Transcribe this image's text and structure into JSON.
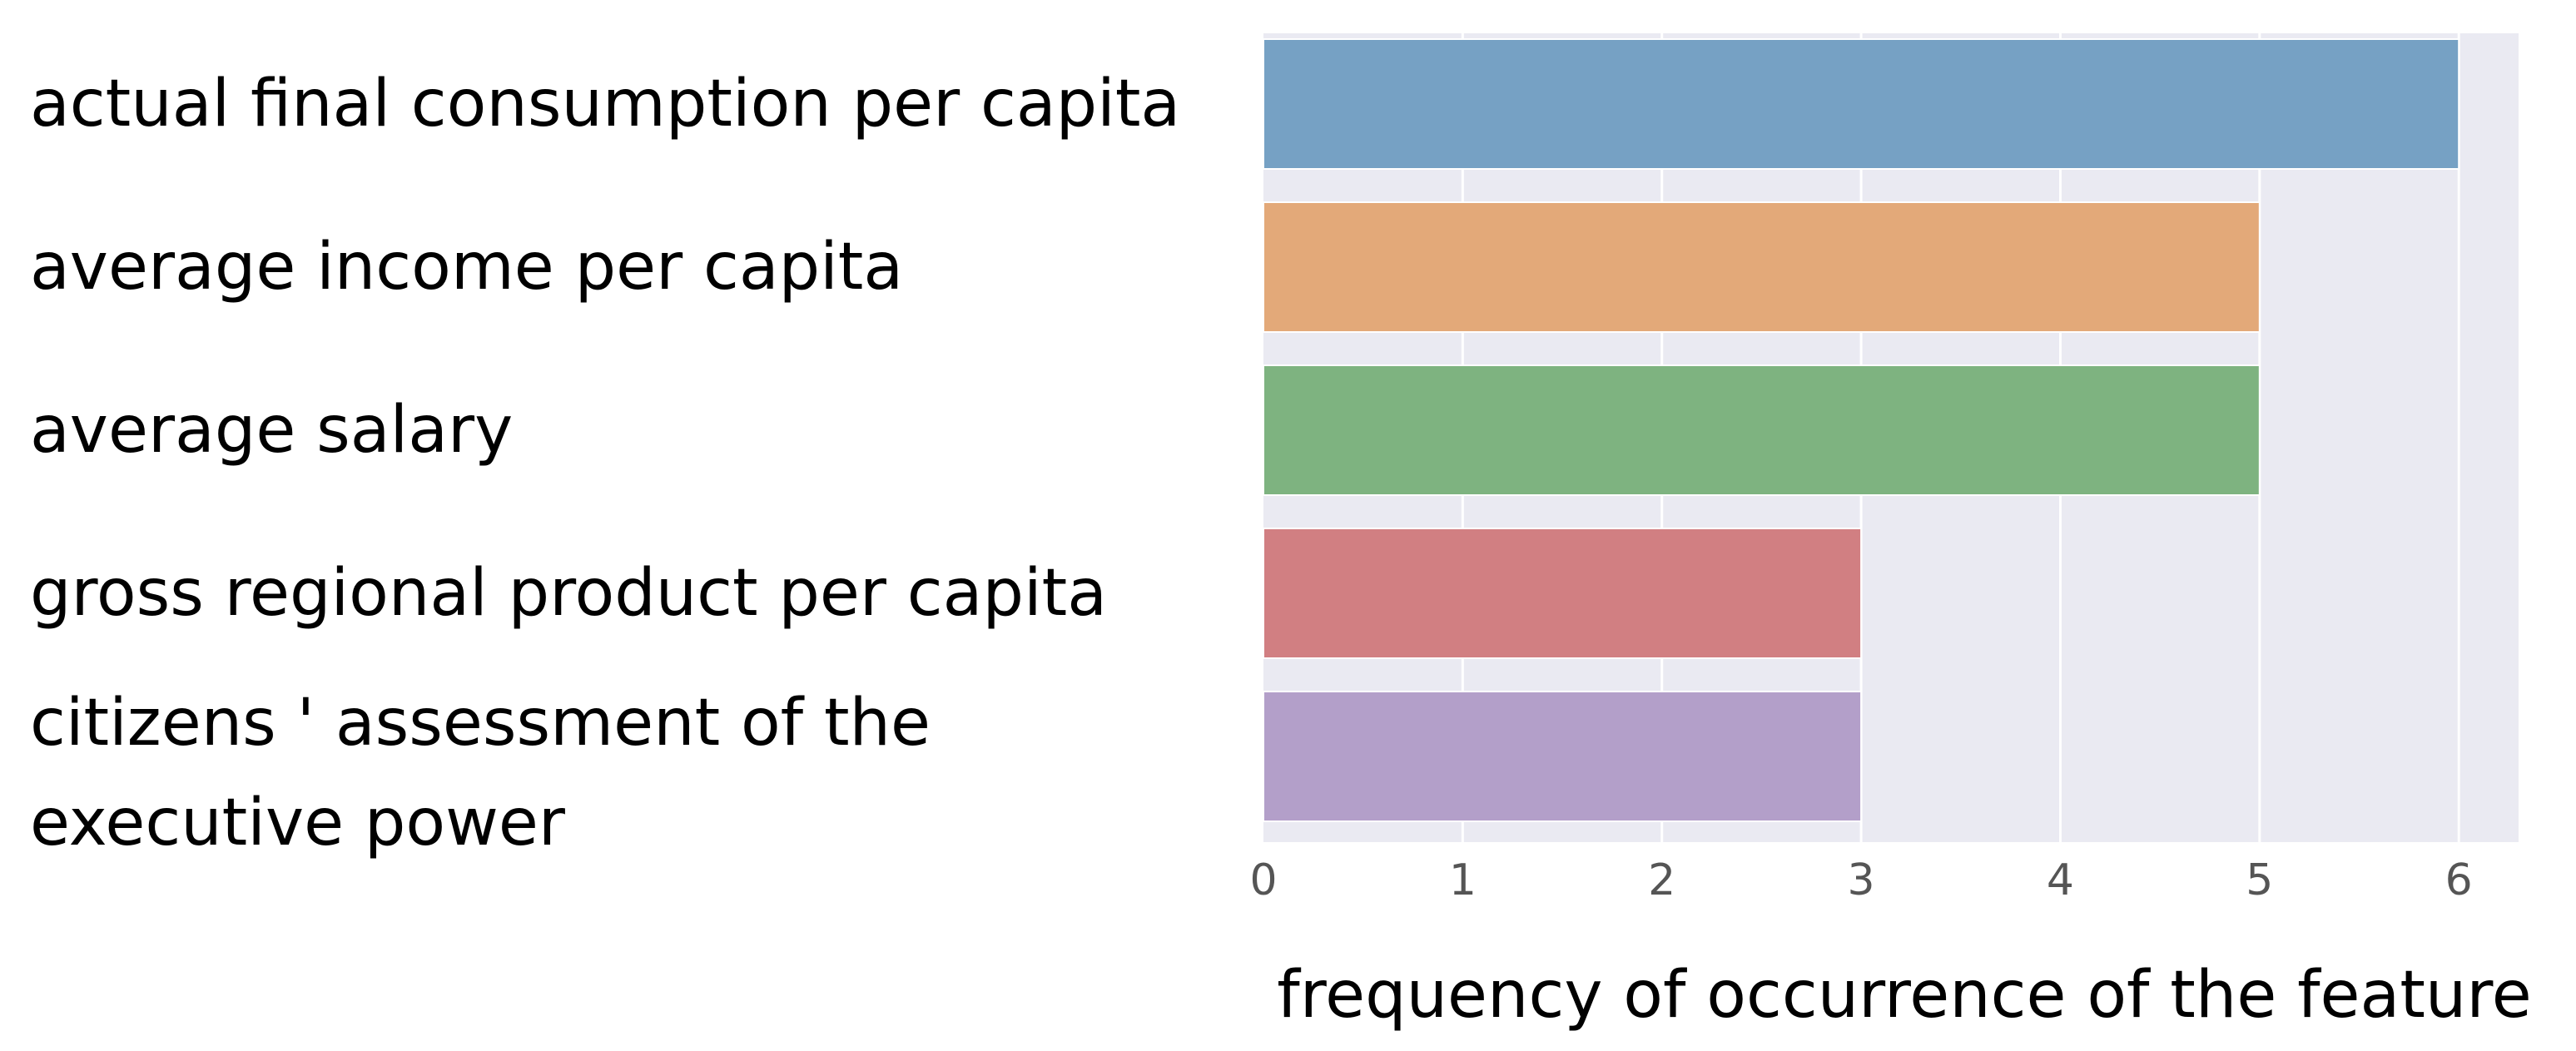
{
  "chart_data": {
    "type": "bar",
    "orientation": "horizontal",
    "categories": [
      "actual final consumption per capita",
      "average income per capita",
      "average salary",
      "gross regional product per capita",
      "citizens ' assessment of the executive power"
    ],
    "category_lines": [
      [
        "actual final consumption per capita"
      ],
      [
        "average income per capita"
      ],
      [
        "average salary"
      ],
      [
        "gross regional product per capita"
      ],
      [
        "citizens ' assessment of the",
        "executive power"
      ]
    ],
    "values": [
      6,
      5,
      5,
      3,
      3
    ],
    "colors": [
      "#76a1c4",
      "#e3a979",
      "#7eb380",
      "#d17f82",
      "#b39fc9"
    ],
    "background_color": "#eaeaf2",
    "grid": true,
    "title": "",
    "xlabel": "frequency of occurrence of the feature",
    "ylabel": "",
    "xlim": [
      0,
      6.3
    ],
    "xticks": [
      0,
      1,
      2,
      3,
      4,
      5,
      6
    ],
    "xtick_labels": [
      "0",
      "1",
      "2",
      "3",
      "4",
      "5",
      "6"
    ]
  }
}
